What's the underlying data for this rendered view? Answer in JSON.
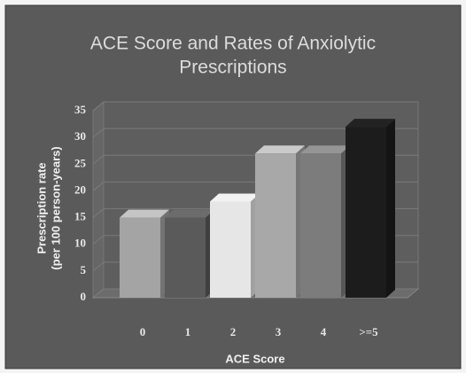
{
  "chart_data": {
    "type": "bar",
    "title": [
      "ACE Score and Rates of Anxiolytic",
      "Prescriptions"
    ],
    "y_label": [
      "Prescription rate",
      "(per 100 person-years)"
    ],
    "x_label": "ACE Score",
    "categories": [
      "0",
      "1",
      "2",
      "3",
      "4",
      ">=5"
    ],
    "values": [
      15,
      15,
      18,
      27,
      27,
      32
    ],
    "colors": [
      "#a4a4a4",
      "#5a5a5a",
      "#e6e6e6",
      "#a8a8a8",
      "#7c7c7c",
      "#1c1c1c"
    ],
    "ylim": [
      0,
      35
    ],
    "yticks": [
      0,
      5,
      10,
      15,
      20,
      25,
      30,
      35
    ],
    "grid": true
  }
}
